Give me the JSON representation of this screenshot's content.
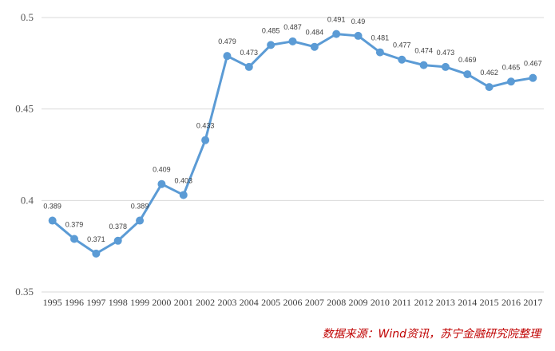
{
  "chart_data": {
    "type": "line",
    "categories": [
      "1995",
      "1996",
      "1997",
      "1998",
      "1999",
      "2000",
      "2001",
      "2002",
      "2003",
      "2004",
      "2005",
      "2006",
      "2007",
      "2008",
      "2009",
      "2010",
      "2011",
      "2012",
      "2013",
      "2014",
      "2015",
      "2016",
      "2017"
    ],
    "series": [
      {
        "values": [
          0.389,
          0.379,
          0.371,
          0.378,
          0.389,
          0.409,
          0.403,
          0.433,
          0.479,
          0.473,
          0.485,
          0.487,
          0.484,
          0.491,
          0.49,
          0.481,
          0.477,
          0.474,
          0.473,
          0.469,
          0.462,
          0.465,
          0.467
        ],
        "labels": [
          "0.389",
          "0.379",
          "0.371",
          "0.378",
          "0.389",
          "0.409",
          "0.403",
          "0.433",
          "0.479",
          "0.473",
          "0.485",
          "0.487",
          "0.484",
          "0.491",
          "0.49",
          "0.481",
          "0.477",
          "0.474",
          "0.473",
          "0.469",
          "0.462",
          "0.465",
          "0.467"
        ],
        "color": "#5b9bd5"
      }
    ],
    "ylim": [
      0.35,
      0.5
    ],
    "y_ticks": [
      "0.35",
      "0.4",
      "0.45",
      "0.5"
    ],
    "y_tick_values": [
      0.35,
      0.4,
      0.45,
      0.5
    ],
    "grid": true,
    "legend": "none"
  },
  "source_note": "数据来源：Wind资讯，苏宁金融研究院整理",
  "colors": {
    "series": "#5b9bd5",
    "grid": "#d9d9d9",
    "source_note": "#c00000"
  }
}
